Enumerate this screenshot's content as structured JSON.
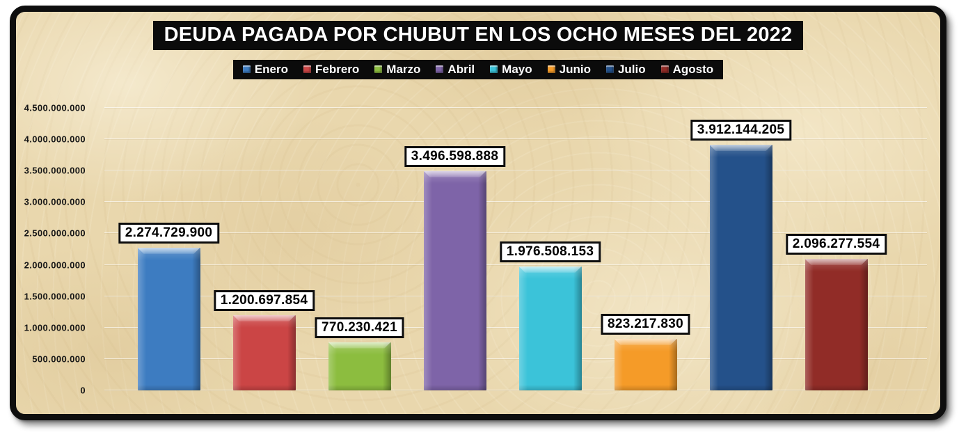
{
  "frame": {
    "border_color": "#0e0e0e",
    "background_color": "#e9d7ad"
  },
  "header": {
    "title_bg": "#0b0b0b",
    "title_color": "#ffffff"
  },
  "legend": {
    "bg": "#0b0b0b",
    "text_color": "#ffffff"
  },
  "chart_data": {
    "type": "bar",
    "title": "DEUDA PAGADA POR CHUBUT EN LOS OCHO MESES DEL 2022",
    "categories": [
      "Enero",
      "Febrero",
      "Marzo",
      "Abril",
      "Mayo",
      "Junio",
      "Julio",
      "Agosto"
    ],
    "values": [
      2274729900,
      1200697854,
      770230421,
      3496598888,
      1976508153,
      823217830,
      3912144205,
      2096277554
    ],
    "values_formatted": [
      "2.274.729.900",
      "1.200.697.854",
      "770.230.421",
      "3.496.598.888",
      "1.976.508.153",
      "823.217.830",
      "3.912.144.205",
      "2.096.277.554"
    ],
    "colors": [
      "#3d7cc1",
      "#cb4545",
      "#8cbd3f",
      "#7e64a8",
      "#3bc3d9",
      "#f59b28",
      "#24518a",
      "#912c27"
    ],
    "xlabel": "",
    "ylabel": "",
    "ylim": [
      0,
      4500000000
    ],
    "ytick_labels": [
      "0",
      "500.000.000",
      "1.000.000.000",
      "1.500.000.000",
      "2.000.000.000",
      "2.500.000.000",
      "3.000.000.000",
      "3.500.000.000",
      "4.000.000.000",
      "4.500.000.000"
    ],
    "grid": true,
    "legend_position": "top",
    "value_label_style": {
      "bg": "#ffffff",
      "border": "#0d0d0d",
      "text": "#000000"
    }
  }
}
